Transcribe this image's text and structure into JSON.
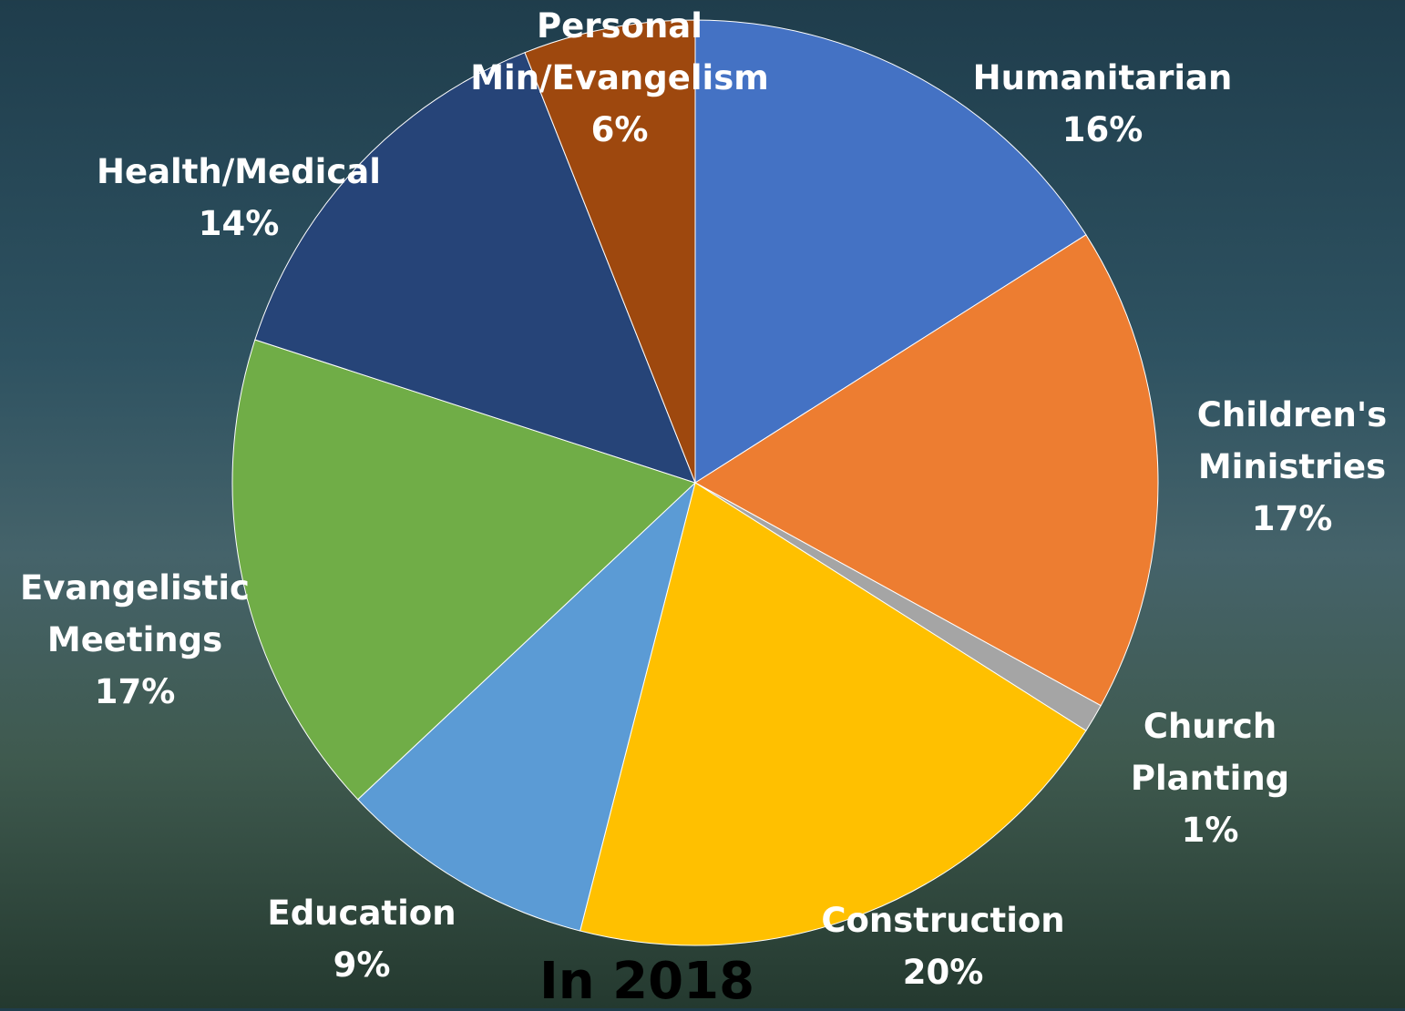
{
  "chart_data": {
    "type": "pie",
    "title": "In 2018",
    "categories": [
      "Humanitarian",
      "Children's Ministries",
      "Church Planting",
      "Construction",
      "Education",
      "Evangelistic Meetings",
      "Health/Medical",
      "Personal Min/Evangelism"
    ],
    "values": [
      16,
      17,
      1,
      20,
      9,
      17,
      14,
      6
    ],
    "value_labels": [
      "16%",
      "17%",
      "1%",
      "20%",
      "9%",
      "17%",
      "14%",
      "6%"
    ],
    "colors": [
      "#4472c4",
      "#ed7d31",
      "#a5a5a5",
      "#ffc000",
      "#5b9bd5",
      "#70ad47",
      "#264478",
      "#9e480e"
    ]
  }
}
